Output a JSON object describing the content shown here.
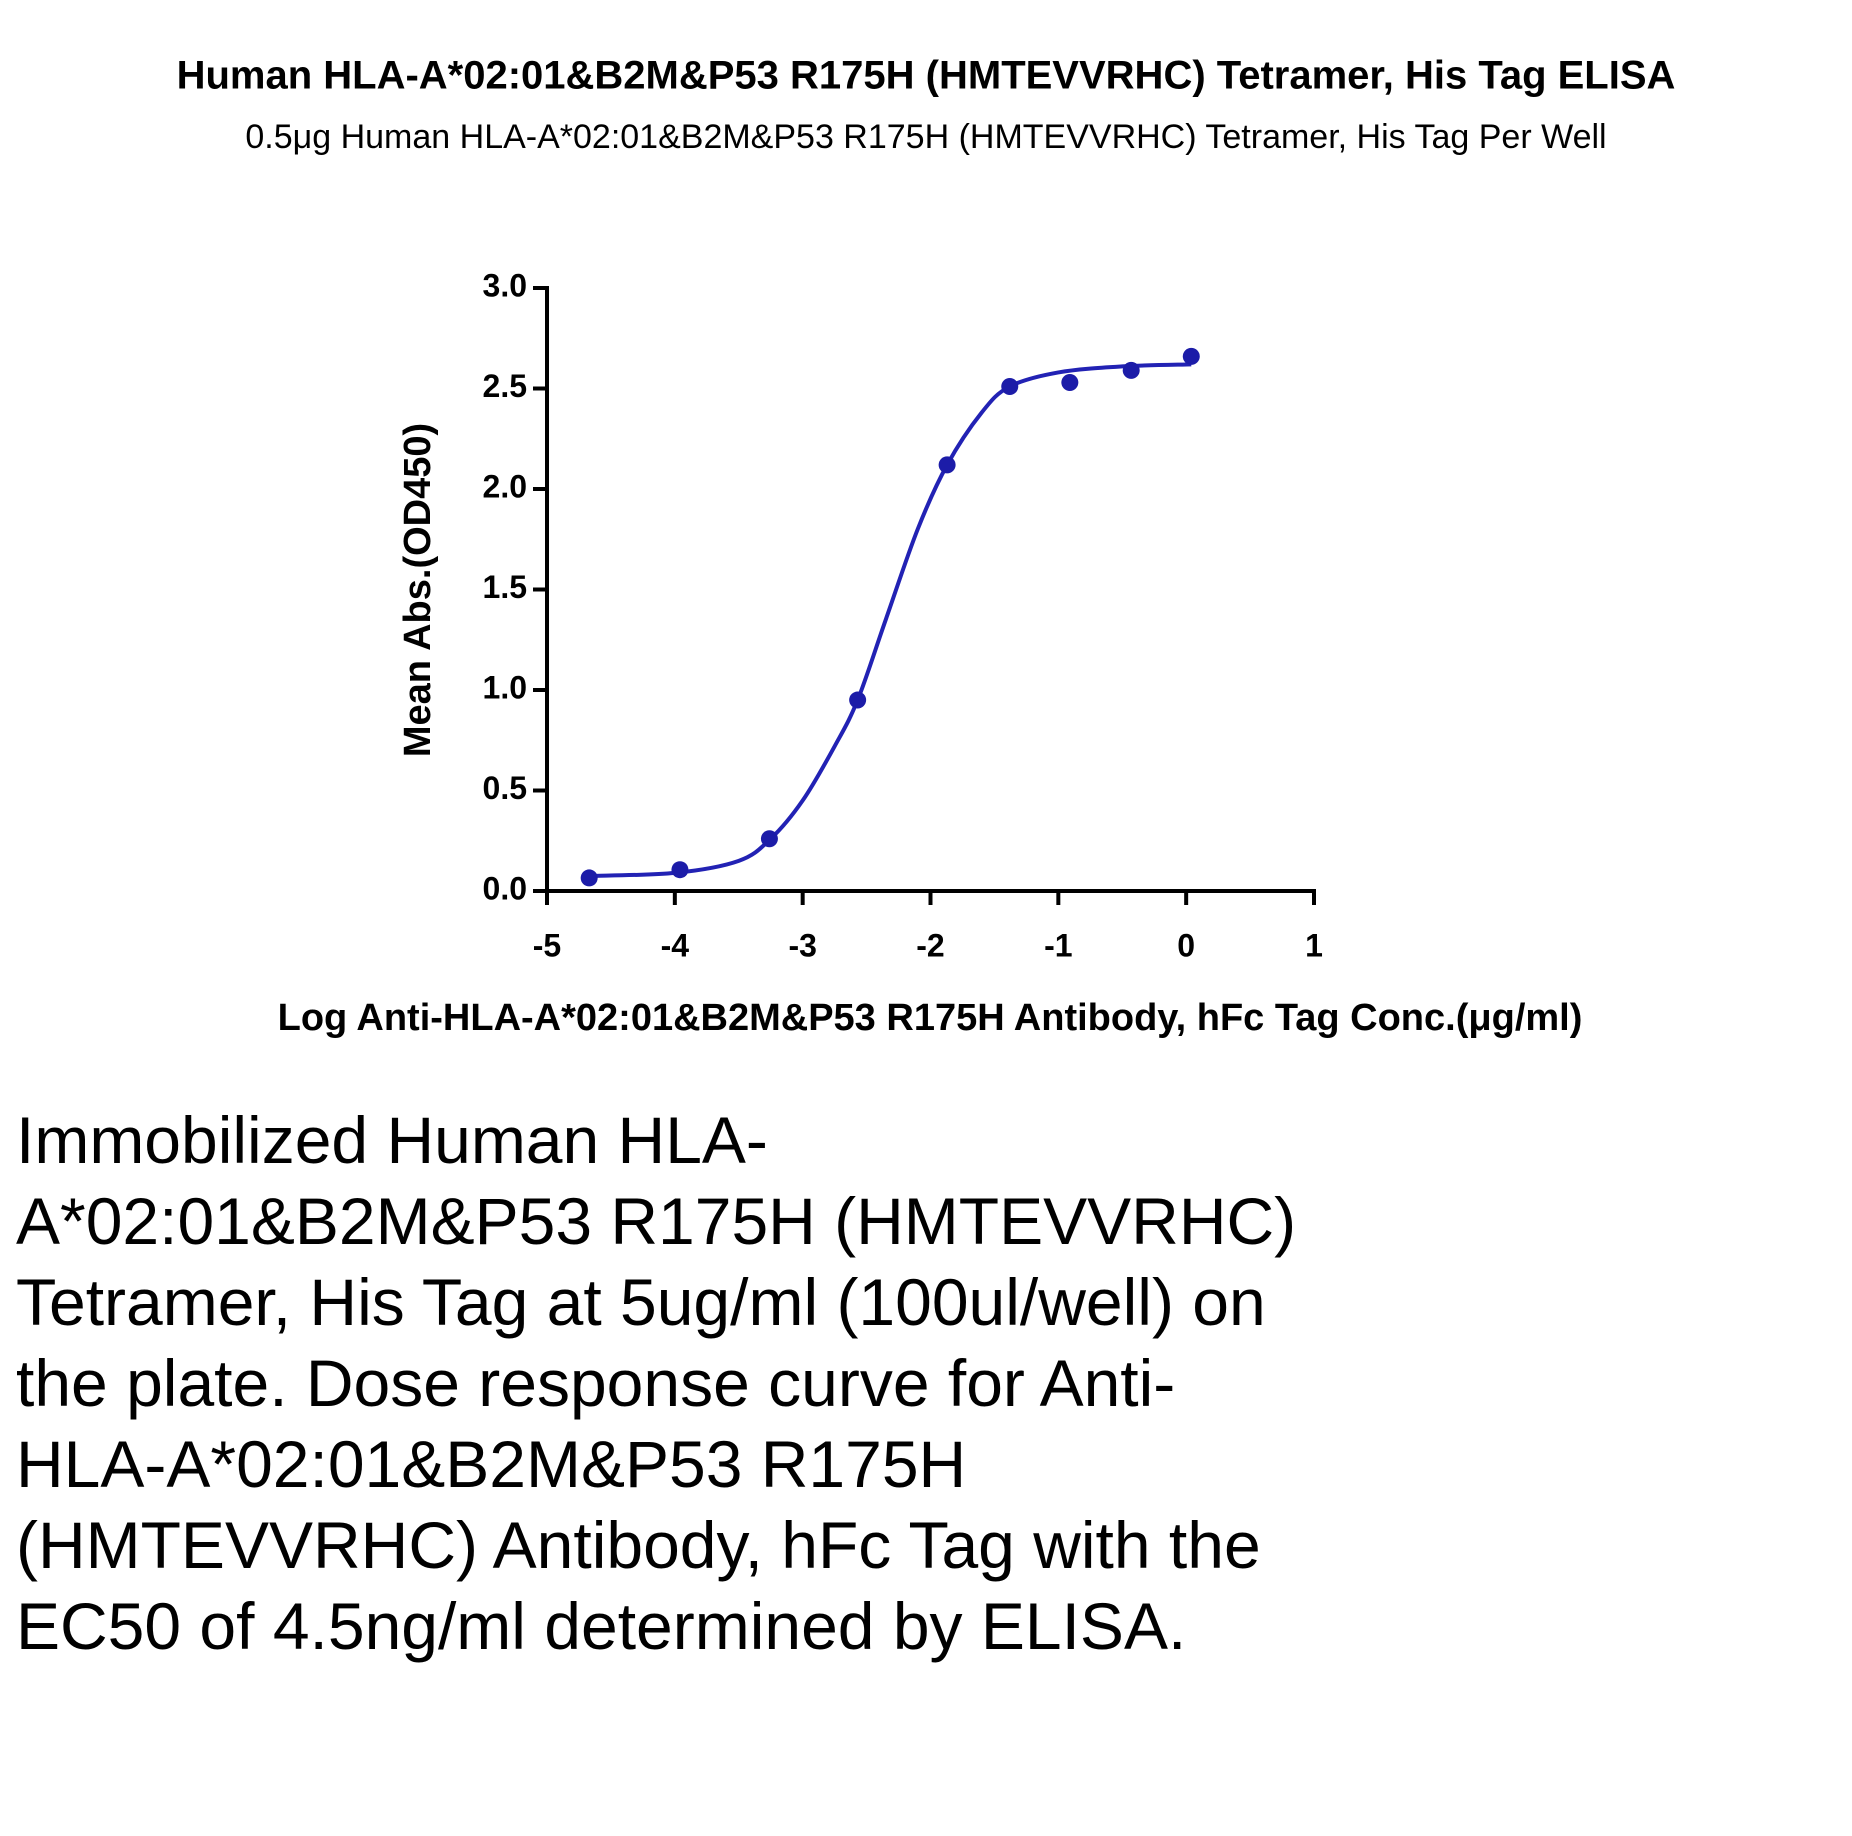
{
  "chart_data": {
    "type": "scatter",
    "title": "Human HLA-A*02:01&B2M&P53 R175H (HMTEVVRHC) Tetramer, His Tag ELISA",
    "subtitle": "0.5μg Human HLA-A*02:01&B2M&P53 R175H (HMTEVVRHC) Tetramer, His Tag Per Well",
    "x_label": "Log Anti-HLA-A*02:01&B2M&P53 R175H Antibody, hFc Tag Conc.(μg/ml)",
    "y_label": "Mean Abs.(OD450)",
    "xlim": [
      -5,
      1
    ],
    "xticks": [
      -5,
      -4,
      -3,
      -2,
      -1,
      0,
      1
    ],
    "ylim": [
      0,
      3
    ],
    "yticks": [
      {
        "value": 0,
        "label": "0.0"
      },
      {
        "value": 0.5,
        "label": "0.5"
      },
      {
        "value": 1,
        "label": "1.0"
      },
      {
        "value": 1.5,
        "label": "1.5"
      },
      {
        "value": 2,
        "label": "2.0"
      },
      {
        "value": 2.5,
        "label": "2.5"
      },
      {
        "value": 3,
        "label": "3.0"
      }
    ],
    "points": {
      "color": "#1c1ca8",
      "x": [
        -4.67,
        -3.96,
        -3.26,
        -2.57,
        -1.87,
        -1.38,
        -0.91,
        -0.43,
        0.04
      ],
      "values": [
        0.065,
        0.106,
        0.26,
        0.95,
        2.12,
        2.51,
        2.53,
        2.59,
        2.66
      ]
    },
    "fit": {
      "color": "#2222b4",
      "x": [
        -4.67,
        -4,
        -3.5,
        -3.25,
        -3,
        -2.75,
        -2.57,
        -2.35,
        -2.1,
        -1.87,
        -1.6,
        -1.38,
        -1,
        -0.5,
        0.04
      ],
      "values": [
        0.075,
        0.09,
        0.15,
        0.26,
        0.45,
        0.72,
        0.95,
        1.35,
        1.8,
        2.12,
        2.38,
        2.51,
        2.58,
        2.61,
        2.62
      ]
    }
  },
  "caption": "Immobilized Human HLA-A*02:01&B2M&P53 R175H (HMTEVVRHC) Tetramer, His Tag at 5ug/ml (100ul/well) on the plate. Dose response curve for Anti-HLA-A*02:01&B2M&P53 R175H (HMTEVVRHC) Antibody, hFc Tag with the EC50 of 4.5ng/ml determined by ELISA."
}
